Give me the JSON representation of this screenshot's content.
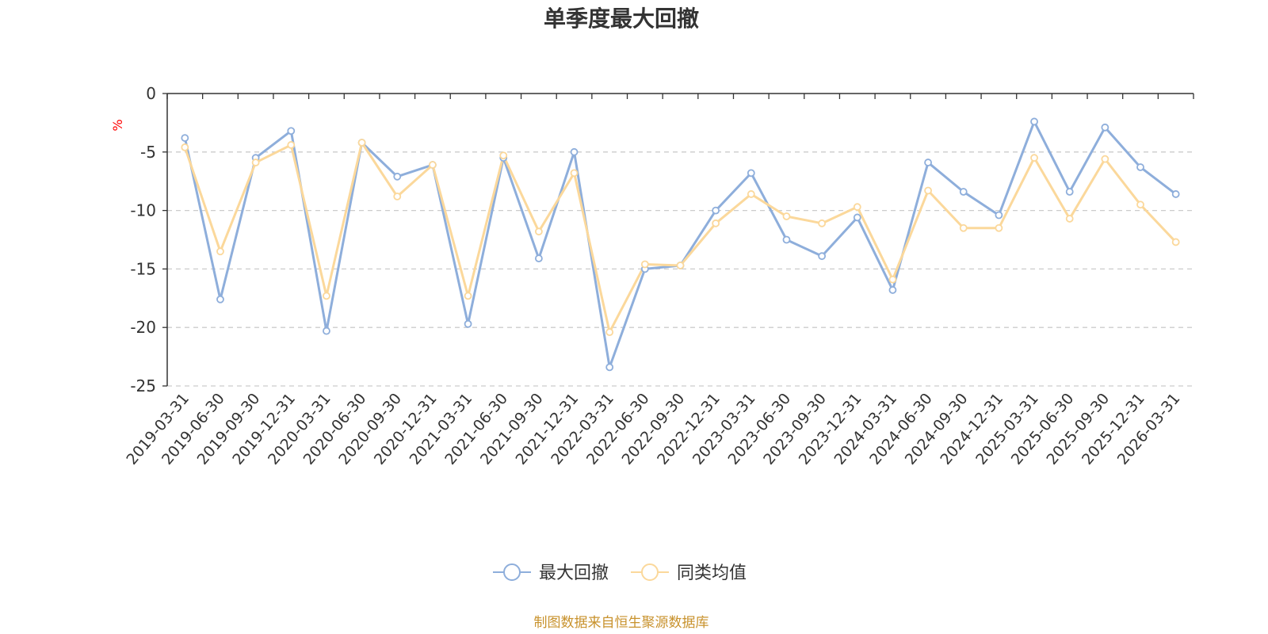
{
  "chart_data": {
    "type": "line",
    "title": "单季度最大回撤",
    "ylabel": "%",
    "ylim": [
      -25,
      0
    ],
    "yticks": [
      0,
      -5,
      -10,
      -15,
      -20,
      -25
    ],
    "grid": true,
    "legend_position": "bottom",
    "categories": [
      "2019-03-31",
      "2019-06-30",
      "2019-09-30",
      "2019-12-31",
      "2020-03-31",
      "2020-06-30",
      "2020-09-30",
      "2020-12-31",
      "2021-03-31",
      "2021-06-30",
      "2021-09-30",
      "2021-12-31",
      "2022-03-31",
      "2022-06-30",
      "2022-09-30",
      "2022-12-31",
      "2023-03-31",
      "2023-06-30",
      "2023-09-30",
      "2023-12-31",
      "2024-03-31",
      "2024-06-30",
      "2024-09-30",
      "2024-12-31",
      "2025-03-31",
      "2025-06-30",
      "2025-09-30",
      "2025-12-31",
      "2026-03-31"
    ],
    "series": [
      {
        "name": "最大回撤",
        "color": "#8eaedb",
        "values": [
          -3.8,
          -17.6,
          -5.5,
          -3.2,
          -20.3,
          -4.2,
          -7.1,
          -6.1,
          -19.7,
          -5.5,
          -14.1,
          -5.0,
          -23.4,
          -15.0,
          -14.7,
          -10.0,
          -6.8,
          -12.5,
          -13.9,
          -10.6,
          -16.8,
          -5.9,
          -8.4,
          -10.4,
          -2.4,
          -8.4,
          -2.9,
          -6.3,
          -8.6
        ]
      },
      {
        "name": "同类均值",
        "color": "#fbd89b",
        "values": [
          -4.6,
          -13.5,
          -5.9,
          -4.4,
          -17.3,
          -4.2,
          -8.8,
          -6.1,
          -17.3,
          -5.3,
          -11.8,
          -6.8,
          -20.4,
          -14.6,
          -14.7,
          -11.1,
          -8.6,
          -10.5,
          -11.1,
          -9.7,
          -15.9,
          -8.3,
          -11.5,
          -11.5,
          -5.5,
          -10.7,
          -5.6,
          -9.5,
          -12.7
        ]
      }
    ]
  },
  "footer": {
    "source": "制图数据来自恒生聚源数据库",
    "source_color": "#c8922d"
  },
  "colors": {
    "axis": "#333333",
    "grid": "#cccccc",
    "unit": "#ff0000"
  }
}
